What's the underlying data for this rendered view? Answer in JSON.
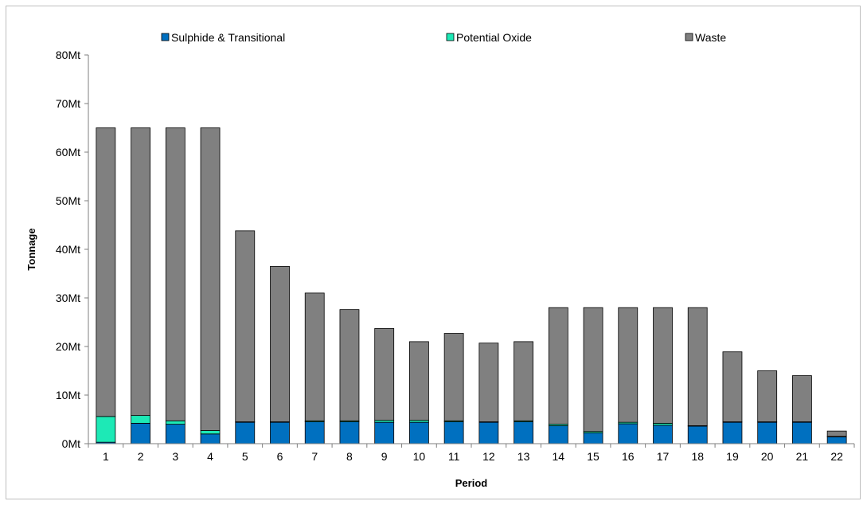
{
  "chart_data": {
    "type": "bar",
    "stacked": true,
    "title": "",
    "xlabel": "Period",
    "ylabel": "Tonnage",
    "ylim": [
      0,
      80
    ],
    "y_unit_suffix": "Mt",
    "y_ticks": [
      "0Mt",
      "10Mt",
      "20Mt",
      "30Mt",
      "40Mt",
      "50Mt",
      "60Mt",
      "70Mt",
      "80Mt"
    ],
    "grid": false,
    "legend_position": "top",
    "categories": [
      "1",
      "2",
      "3",
      "4",
      "5",
      "6",
      "7",
      "8",
      "9",
      "10",
      "11",
      "12",
      "13",
      "14",
      "15",
      "16",
      "17",
      "18",
      "19",
      "20",
      "21",
      "22"
    ],
    "series": [
      {
        "name": "Sulphide & Transitional",
        "color": "#0070c0",
        "values": [
          0.3,
          4.2,
          4.0,
          2.0,
          4.4,
          4.4,
          4.5,
          4.5,
          4.4,
          4.4,
          4.5,
          4.4,
          4.5,
          3.7,
          2.2,
          4.1,
          3.8,
          3.6,
          4.4,
          4.4,
          4.4,
          1.4
        ]
      },
      {
        "name": "Potential Oxide",
        "color": "#1de9b6",
        "values": [
          5.3,
          1.6,
          0.7,
          0.7,
          0.1,
          0.1,
          0.2,
          0.2,
          0.4,
          0.4,
          0.2,
          0.1,
          0.2,
          0.3,
          0.3,
          0.3,
          0.4,
          0.1,
          0.1,
          0.1,
          0.1,
          0.1
        ]
      },
      {
        "name": "Waste",
        "color": "#808080",
        "values": [
          59.4,
          59.2,
          60.3,
          62.3,
          39.3,
          32.0,
          26.3,
          22.9,
          18.9,
          16.2,
          18.0,
          16.2,
          16.3,
          24.0,
          25.5,
          23.6,
          23.8,
          24.3,
          14.4,
          10.5,
          9.5,
          1.1
        ]
      }
    ]
  }
}
